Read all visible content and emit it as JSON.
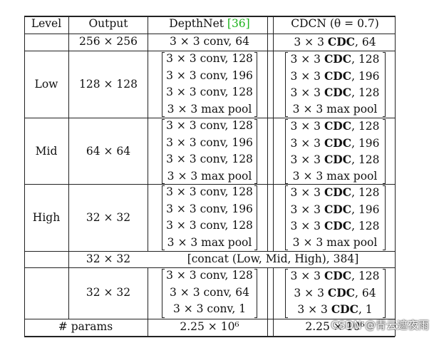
{
  "header": {
    "level": "Level",
    "output": "Output",
    "depthnet": "DepthNet",
    "depthnet_ref": "[36]",
    "cdcn": "CDCN (θ = 0.7)"
  },
  "first_row": {
    "output": "256 × 256",
    "depthnet": "3 × 3 conv, 64",
    "cdcn": "3 × 3 CDC, 64"
  },
  "levels": [
    {
      "name": "Low",
      "output": "128 × 128",
      "depthnet": [
        "3 × 3 conv, 128",
        "3 × 3 conv, 196",
        "3 × 3 conv, 128",
        "3 × 3 max pool"
      ],
      "cdcn": [
        "3 × 3 CDC, 128",
        "3 × 3 CDC, 196",
        "3 × 3 CDC, 128",
        "3 × 3 max pool"
      ]
    },
    {
      "name": "Mid",
      "output": "64 × 64",
      "depthnet": [
        "3 × 3 conv, 128",
        "3 × 3 conv, 196",
        "3 × 3 conv, 128",
        "3 × 3 max pool"
      ],
      "cdcn": [
        "3 × 3 CDC, 128",
        "3 × 3 CDC, 196",
        "3 × 3 CDC, 128",
        "3 × 3 max pool"
      ]
    },
    {
      "name": "High",
      "output": "32 × 32",
      "depthnet": [
        "3 × 3 conv, 128",
        "3 × 3 conv, 196",
        "3 × 3 conv, 128",
        "3 × 3 max pool"
      ],
      "cdcn": [
        "3 × 3 CDC, 128",
        "3 × 3 CDC, 196",
        "3 × 3 CDC, 128",
        "3 × 3 max pool"
      ]
    }
  ],
  "concat_row": {
    "output": "32 × 32",
    "text": "[concat (Low, Mid, High), 384]"
  },
  "final_block": {
    "output": "32 × 32",
    "depthnet": [
      "3 × 3 conv, 128",
      "3 × 3 conv, 64",
      "3 × 3 conv, 1"
    ],
    "cdcn": [
      "3 × 3 CDC, 128",
      "3 × 3 CDC, 64",
      "3 × 3 CDC, 1"
    ]
  },
  "params_row": {
    "label": "# params",
    "depthnet": "2.25 × 10⁶",
    "cdcn": "2.25 × 10⁶"
  },
  "watermark": "CSDN @青云遮夜雨"
}
